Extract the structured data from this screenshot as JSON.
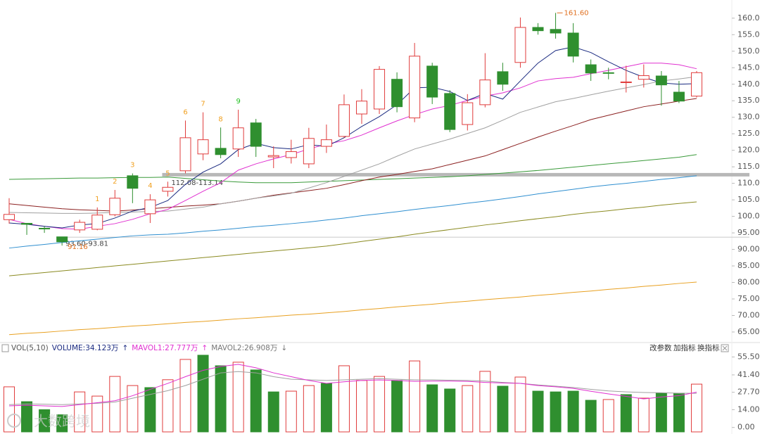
{
  "chart_data": [
    {
      "type": "candlestick",
      "open": [
        99.0,
        97.9,
        96.4,
        93.8,
        95.9,
        96.1,
        100.5,
        112.3,
        100.8,
        107.6,
        113.8,
        118.9,
        120.6,
        120.4,
        128.3,
        118.0,
        117.8,
        115.9,
        121.2,
        124.2,
        131.0,
        132.5,
        141.5,
        129.8,
        145.5,
        137.2,
        127.8,
        133.8,
        143.8,
        146.6,
        157.2,
        156.6,
        155.5,
        145.9,
        143.5,
        140.5,
        141.5,
        142.5,
        137.6,
        136.4
      ],
      "high": [
        105.5,
        97.9,
        97.0,
        93.8,
        99.0,
        102.7,
        108.0,
        113.0,
        106.7,
        110.5,
        129.0,
        131.5,
        126.9,
        132.3,
        129.5,
        121.2,
        123.2,
        126.8,
        127.8,
        136.9,
        138.5,
        145.5,
        143.6,
        152.5,
        146.5,
        138.2,
        137.0,
        149.4,
        146.5,
        160.2,
        158.5,
        161.6,
        158.5,
        147.5,
        145.0,
        145.6,
        146.0,
        144.0,
        141.0,
        144.0
      ],
      "low": [
        97.8,
        94.4,
        95.0,
        91.16,
        95.0,
        95.8,
        100.0,
        104.0,
        98.0,
        106.0,
        113.0,
        117.0,
        117.6,
        118.0,
        118.0,
        114.6,
        116.0,
        114.6,
        119.2,
        123.8,
        128.0,
        131.0,
        131.5,
        128.5,
        134.0,
        125.5,
        126.0,
        133.0,
        138.0,
        145.0,
        155.0,
        153.8,
        146.6,
        141.0,
        141.5,
        137.5,
        139.0,
        133.5,
        134.3,
        136.0
      ],
      "close": [
        100.6,
        97.6,
        96.2,
        92.3,
        98.2,
        100.4,
        105.5,
        108.5,
        105.0,
        108.8,
        123.8,
        123.2,
        118.7,
        126.8,
        121.2,
        118.4,
        119.6,
        123.6,
        123.2,
        133.8,
        134.9,
        144.5,
        133.2,
        148.5,
        136.1,
        126.3,
        134.4,
        141.3,
        140.0,
        157.2,
        156.2,
        155.5,
        148.5,
        143.4,
        143.3,
        140.7,
        142.6,
        139.8,
        134.9,
        143.5
      ],
      "up_color": "#e03c3c",
      "down_color": "#2f8f2f",
      "lines": [
        {
          "color": "#e8a020",
          "values": [
            64.2,
            64.6,
            64.9,
            65.3,
            65.7,
            66,
            66.4,
            66.8,
            67.1,
            67.5,
            67.9,
            68.2,
            68.6,
            69,
            69.3,
            69.7,
            70.1,
            70.4,
            70.8,
            71.2,
            71.7,
            72.1,
            72.6,
            73,
            73.4,
            73.9,
            74.3,
            74.8,
            75.2,
            75.6,
            76.1,
            76.5,
            77,
            77.4,
            77.9,
            78.3,
            78.8,
            79.2,
            79.7,
            80.1
          ]
        },
        {
          "color": "#8a8a20",
          "values": [
            82,
            82.5,
            83,
            83.5,
            84,
            84.5,
            85,
            85.5,
            86,
            86.5,
            87,
            87.5,
            88,
            88.5,
            89,
            89.5,
            90,
            90.5,
            91,
            91.7,
            92.4,
            93.1,
            93.8,
            94.6,
            95.3,
            96,
            96.7,
            97.4,
            98,
            98.7,
            99.3,
            99.9,
            100.6,
            101.2,
            101.7,
            102.3,
            102.8,
            103.4,
            103.9,
            104.4
          ]
        },
        {
          "color": "#2f8fd0",
          "values": [
            90.4,
            91,
            91.5,
            92.1,
            92.6,
            93.1,
            93.6,
            94.1,
            94.4,
            94.6,
            95,
            95.5,
            95.9,
            96.4,
            96.9,
            97.3,
            97.8,
            98.3,
            98.9,
            99.5,
            100.2,
            100.8,
            101.4,
            102.1,
            102.7,
            103.3,
            104,
            104.6,
            105.3,
            106,
            106.8,
            107.5,
            108.2,
            108.9,
            109.5,
            110,
            110.6,
            111.2,
            111.7,
            112.3
          ]
        },
        {
          "color": "#3a9a3a",
          "values": [
            111.2,
            111.3,
            111.4,
            111.5,
            111.6,
            111.6,
            111.7,
            111.8,
            111.8,
            111.9,
            111.5,
            111.1,
            110.7,
            110.4,
            110.2,
            110.2,
            110.2,
            110.4,
            110.6,
            110.8,
            111,
            111.2,
            111.4,
            111.6,
            111.8,
            112,
            112.3,
            112.7,
            113.1,
            113.5,
            113.9,
            114.4,
            114.9,
            115.4,
            115.9,
            116.4,
            116.9,
            117.4,
            117.9,
            118.7
          ]
        },
        {
          "color": "#8b2020",
          "values": [
            103.8,
            103.3,
            102.8,
            102.3,
            102,
            101.8,
            101.6,
            101.9,
            102.3,
            102.7,
            103.1,
            103.4,
            103.8,
            104.6,
            105.5,
            106.4,
            107.1,
            107.8,
            108.5,
            109.6,
            110.8,
            111.9,
            112.7,
            113.6,
            114.4,
            115.7,
            117,
            118.3,
            120.2,
            122.1,
            124,
            125.8,
            127.5,
            129.3,
            130.6,
            131.9,
            133.2,
            134,
            134.9,
            135.7
          ]
        },
        {
          "color": "#a0a0a0",
          "values": [
            101.2,
            101.1,
            101,
            100.9,
            100.9,
            101,
            101.2,
            101.3,
            101.5,
            101.6,
            102.2,
            102.8,
            103.8,
            104.6,
            105.5,
            106.2,
            107,
            108.6,
            110.2,
            112.1,
            114,
            115.9,
            118.2,
            120.4,
            121.9,
            123.4,
            125.1,
            126.8,
            129.1,
            131.5,
            133.1,
            134.7,
            135.7,
            136.8,
            137.9,
            138.9,
            139.9,
            141,
            141.6,
            142.3
          ]
        },
        {
          "color": "#e030d0",
          "values": [
            99.1,
            97.8,
            97,
            96.3,
            96.1,
            97,
            97.8,
            99.1,
            100.8,
            102.1,
            104.8,
            107.6,
            110.2,
            114,
            115.9,
            117.4,
            118.7,
            120.4,
            121.9,
            122.9,
            124.6,
            126.8,
            128.9,
            130.8,
            132.5,
            133.6,
            135.1,
            136.4,
            137.4,
            138.9,
            141,
            141.7,
            142.1,
            143.2,
            144.2,
            145.3,
            146.4,
            146.4,
            145.9,
            144.7
          ]
        },
        {
          "color": "#1a2a80",
          "values": [
            98,
            97.6,
            97,
            96.5,
            97.4,
            97.8,
            99.5,
            101.6,
            102.7,
            104.8,
            109.7,
            113.4,
            115.9,
            120.2,
            122.1,
            120.8,
            120.4,
            121.7,
            121.2,
            123.8,
            127.2,
            130.2,
            133.8,
            138.9,
            139.1,
            137.8,
            135.1,
            137.2,
            135.5,
            141,
            146.4,
            150.2,
            151.3,
            149.6,
            146.8,
            144.2,
            142.1,
            140.4,
            140,
            140.2
          ]
        }
      ],
      "zones": [
        {
          "label": "112.08-113.14",
          "low": 112.08,
          "high": 113.14,
          "start": 9,
          "color": "#b8b8b8"
        },
        {
          "label": "93.60-93.81",
          "low": 93.6,
          "high": 93.81,
          "start": 3,
          "color": "#c8c8c8"
        }
      ],
      "high_label": {
        "index": 31,
        "label": "161.60",
        "color": "#e07020"
      },
      "low_label": {
        "index": 3,
        "label": "91.16",
        "color": "#e07020"
      },
      "counts": [
        {
          "index": 5,
          "value": 1,
          "color": "#f0a020"
        },
        {
          "index": 6,
          "value": 2,
          "color": "#f0a020"
        },
        {
          "index": 7,
          "value": 3,
          "color": "#f0a020"
        },
        {
          "index": 8,
          "value": 4,
          "color": "#f0a020"
        },
        {
          "index": 9,
          "value": 5,
          "color": "#f0a020"
        },
        {
          "index": 10,
          "value": 6,
          "color": "#f0a020"
        },
        {
          "index": 11,
          "value": 7,
          "color": "#f0a020"
        },
        {
          "index": 12,
          "value": 8,
          "color": "#f0a020"
        },
        {
          "index": 13,
          "value": 9,
          "color": "#20c020"
        }
      ],
      "ylim": [
        61.8,
        165.5
      ],
      "yticks": [
        {
          "value": 65,
          "label": "65.00"
        },
        {
          "value": 70,
          "label": "70.00"
        },
        {
          "value": 75,
          "label": "75.00"
        },
        {
          "value": 80,
          "label": "80.00"
        },
        {
          "value": 85,
          "label": "85.00"
        },
        {
          "value": 90,
          "label": "90.00"
        },
        {
          "value": 95,
          "label": "95.00"
        },
        {
          "value": 100,
          "label": "100.00"
        },
        {
          "value": 105,
          "label": "105.00"
        },
        {
          "value": 110,
          "label": "110.00"
        },
        {
          "value": 115,
          "label": "115.00"
        },
        {
          "value": 120,
          "label": "120.00"
        },
        {
          "value": 125,
          "label": "125.00"
        },
        {
          "value": 130,
          "label": "130.00"
        },
        {
          "value": 135,
          "label": "135.00"
        },
        {
          "value": 140,
          "label": "140.00"
        },
        {
          "value": 145,
          "label": "145.00"
        },
        {
          "value": 150,
          "label": "150.00"
        },
        {
          "value": 155,
          "label": "155.00"
        },
        {
          "value": 160,
          "label": "160.00"
        }
      ]
    },
    {
      "type": "bar",
      "values": [
        32.0,
        20.3,
        14.0,
        10.0,
        28.0,
        24.7,
        40.2,
        33.0,
        31.4,
        37.6,
        53.6,
        56.9,
        48.6,
        51.4,
        45.3,
        28.0,
        28.6,
        33.0,
        34.7,
        48.6,
        37.0,
        40.2,
        37.0,
        52.4,
        33.6,
        30.3,
        33.0,
        44.2,
        32.5,
        39.7,
        28.6,
        28.0,
        28.6,
        21.4,
        22.0,
        25.9,
        23.1,
        27.0,
        27.0,
        34.123
      ],
      "colors": [
        "#e03c3c",
        "#2f8f2f",
        "#2f8f2f",
        "#2f8f2f",
        "#e03c3c",
        "#e03c3c",
        "#e03c3c",
        "#e03c3c",
        "#2f8f2f",
        "#e03c3c",
        "#e03c3c",
        "#2f8f2f",
        "#2f8f2f",
        "#e03c3c",
        "#2f8f2f",
        "#2f8f2f",
        "#e03c3c",
        "#e03c3c",
        "#2f8f2f",
        "#e03c3c",
        "#e03c3c",
        "#e03c3c",
        "#2f8f2f",
        "#e03c3c",
        "#2f8f2f",
        "#2f8f2f",
        "#e03c3c",
        "#e03c3c",
        "#2f8f2f",
        "#e03c3c",
        "#2f8f2f",
        "#2f8f2f",
        "#2f8f2f",
        "#2f8f2f",
        "#e03c3c",
        "#2f8f2f",
        "#e03c3c",
        "#2f8f2f",
        "#2f8f2f",
        "#e03c3c"
      ],
      "lines": [
        {
          "color": "#a0a0a0",
          "values": [
            18,
            18.5,
            18.3,
            18,
            18.5,
            19,
            20,
            23,
            26,
            29,
            33,
            38,
            43,
            44,
            43,
            40,
            38,
            37.5,
            37,
            37.5,
            38,
            38.5,
            38,
            37.5,
            37.5,
            37.2,
            37,
            36.5,
            35.5,
            34.7,
            33.5,
            32.5,
            31.5,
            30,
            28.8,
            28,
            27.5,
            27.3,
            27,
            26.908
          ]
        },
        {
          "color": "#e030d0",
          "values": [
            17,
            17.5,
            17,
            16.5,
            18,
            19.5,
            21,
            25,
            30,
            34.7,
            40,
            45,
            48,
            49.7,
            47,
            43,
            40,
            37,
            34.7,
            36,
            37,
            37.4,
            37,
            36.3,
            36.5,
            36.5,
            36.3,
            35.5,
            35,
            34.7,
            33,
            32,
            30.8,
            28.5,
            26.4,
            24.5,
            22.5,
            24,
            25,
            27.777
          ]
        }
      ],
      "header": [
        {
          "text": "VOL(5,10)",
          "color": "#555555"
        },
        {
          "text": "VOLUME:34.123万",
          "color": "#1a2a80"
        },
        {
          "text": "↑",
          "color": "#1a2a80"
        },
        {
          "text": "MAVOL1:27.777万",
          "color": "#e030d0"
        },
        {
          "text": "↑",
          "color": "#e030d0"
        },
        {
          "text": "MAVOL2:26.908万",
          "color": "#777777"
        },
        {
          "text": "↓",
          "color": "#777777"
        }
      ],
      "buttons": [
        "改参数",
        "加指标",
        "换指标"
      ],
      "watermark": "大数跨境",
      "ylim": [
        -3.5,
        58
      ],
      "yticks": [
        {
          "value": 0,
          "label": "0.00"
        },
        {
          "value": 14,
          "label": "14.00"
        },
        {
          "value": 27.7,
          "label": "27.70"
        },
        {
          "value": 41.4,
          "label": "41.40"
        },
        {
          "value": 55.5,
          "label": "55.50"
        }
      ]
    }
  ]
}
